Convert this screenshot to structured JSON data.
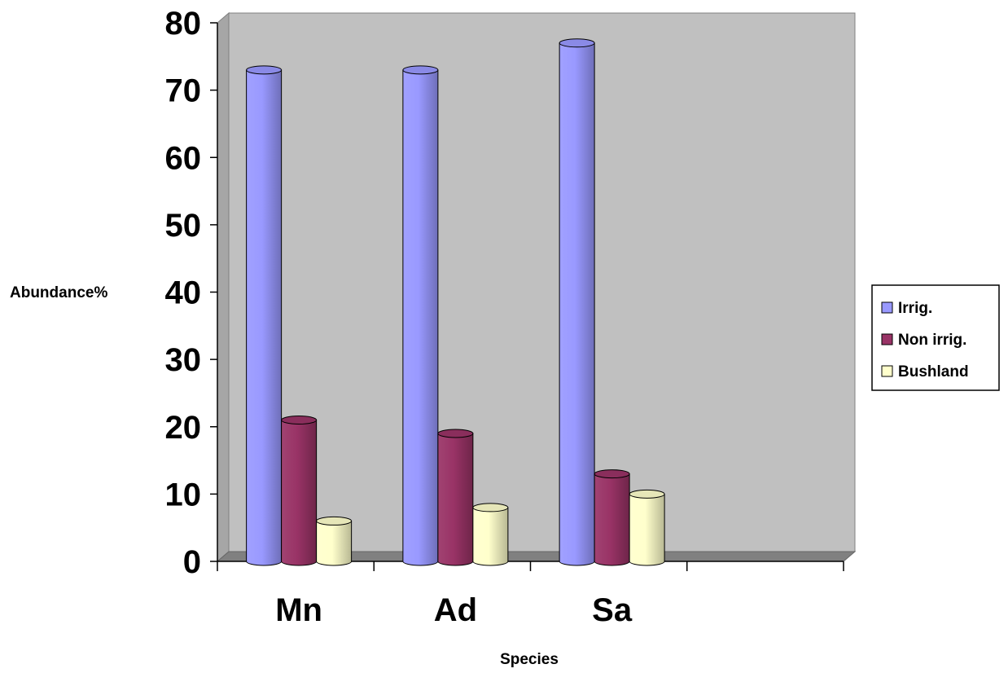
{
  "chart_data": {
    "type": "bar",
    "title": "",
    "xlabel": "Species",
    "ylabel": "Abundance%",
    "categories": [
      "Mn",
      "Ad",
      "Sa"
    ],
    "series": [
      {
        "name": "Irrig.",
        "values": [
          73,
          73,
          77
        ],
        "color": "#9999ff"
      },
      {
        "name": "Non irrig.",
        "values": [
          21,
          19,
          13
        ],
        "color": "#993366"
      },
      {
        "name": "Bushland",
        "values": [
          6,
          8,
          10
        ],
        "color": "#ffffcc"
      }
    ],
    "ylim": [
      0,
      80
    ],
    "yticks": [
      "0",
      "10",
      "20",
      "30",
      "40",
      "50",
      "60",
      "70",
      "80"
    ],
    "grid": false,
    "legend": "right",
    "wall_color": "#c0c0c0"
  }
}
